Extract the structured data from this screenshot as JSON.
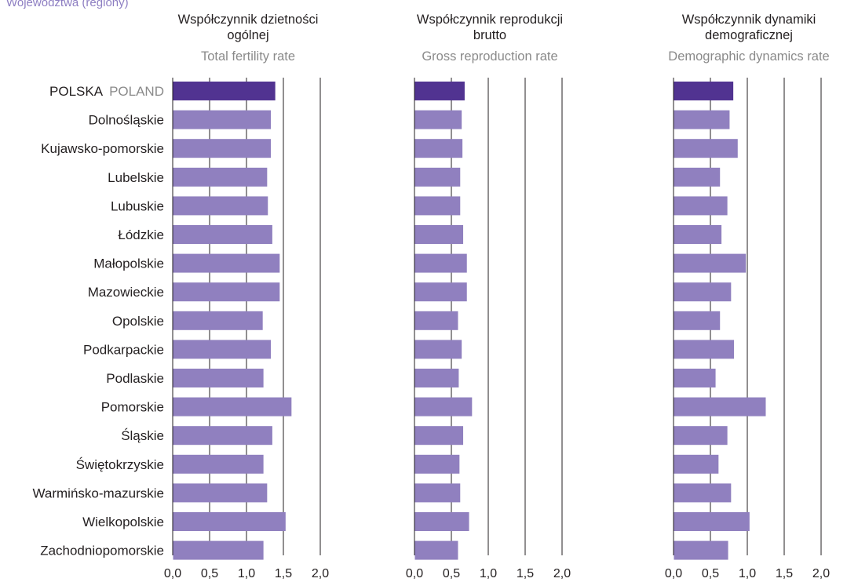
{
  "header": {
    "text": "Województwa (regiony)"
  },
  "colors": {
    "highlight": "#513391",
    "bar": "#9080bf",
    "axis": "#231f20",
    "title_en": "#8a8a8a"
  },
  "categories": [
    {
      "label": "POLSKA",
      "label_en": "POLAND"
    },
    {
      "label": "Dolnośląskie",
      "label_en": ""
    },
    {
      "label": "Kujawsko-pomorskie",
      "label_en": ""
    },
    {
      "label": "Lubelskie",
      "label_en": ""
    },
    {
      "label": "Lubuskie",
      "label_en": ""
    },
    {
      "label": "Łódzkie",
      "label_en": ""
    },
    {
      "label": "Małopolskie",
      "label_en": ""
    },
    {
      "label": "Mazowieckie",
      "label_en": ""
    },
    {
      "label": "Opolskie",
      "label_en": ""
    },
    {
      "label": "Podkarpackie",
      "label_en": ""
    },
    {
      "label": "Podlaskie",
      "label_en": ""
    },
    {
      "label": "Pomorskie",
      "label_en": ""
    },
    {
      "label": "Śląskie",
      "label_en": ""
    },
    {
      "label": "Świętokrzyskie",
      "label_en": ""
    },
    {
      "label": "Warmińsko-mazurskie",
      "label_en": ""
    },
    {
      "label": "Wielkopolskie",
      "label_en": ""
    },
    {
      "label": "Zachodniopomorskie",
      "label_en": ""
    }
  ],
  "chart_data": [
    {
      "type": "bar",
      "orientation": "horizontal",
      "title": "Współczynnik dzietności ogólnej",
      "title_en": "Total fertility rate",
      "categories": [
        "POLSKA POLAND",
        "Dolnośląskie",
        "Kujawsko-pomorskie",
        "Lubelskie",
        "Lubuskie",
        "Łódzkie",
        "Małopolskie",
        "Mazowieckie",
        "Opolskie",
        "Podkarpackie",
        "Podlaskie",
        "Pomorskie",
        "Śląskie",
        "Świętokrzyskie",
        "Warmińsko-mazurskie",
        "Wielkopolskie",
        "Zachodniopomorskie"
      ],
      "values": [
        1.39,
        1.33,
        1.33,
        1.28,
        1.29,
        1.35,
        1.45,
        1.45,
        1.22,
        1.33,
        1.23,
        1.61,
        1.35,
        1.23,
        1.28,
        1.53,
        1.23
      ],
      "xlim": [
        0,
        2
      ],
      "ticks": [
        0,
        0.5,
        1,
        1.5,
        2
      ],
      "tick_labels": [
        "0,0",
        "0,5",
        "1,0",
        "1,5",
        "2,0"
      ],
      "grid": true
    },
    {
      "type": "bar",
      "orientation": "horizontal",
      "title": "Współczynnik reprodukcji brutto",
      "title_en": "Gross reproduction rate",
      "categories": [
        "POLSKA POLAND",
        "Dolnośląskie",
        "Kujawsko-pomorskie",
        "Lubelskie",
        "Lubuskie",
        "Łódzkie",
        "Małopolskie",
        "Mazowieckie",
        "Opolskie",
        "Podkarpackie",
        "Podlaskie",
        "Pomorskie",
        "Śląskie",
        "Świętokrzyskie",
        "Warmińsko-mazurskie",
        "Wielkopolskie",
        "Zachodniopomorskie"
      ],
      "values": [
        0.68,
        0.64,
        0.65,
        0.62,
        0.62,
        0.66,
        0.71,
        0.71,
        0.59,
        0.64,
        0.6,
        0.78,
        0.66,
        0.61,
        0.62,
        0.74,
        0.59
      ],
      "xlim": [
        0,
        2
      ],
      "ticks": [
        0,
        0.5,
        1,
        1.5,
        2
      ],
      "tick_labels": [
        "0,0",
        "0,5",
        "1,0",
        "1,5",
        "2,0"
      ],
      "grid": true
    },
    {
      "type": "bar",
      "orientation": "horizontal",
      "title": "Współczynnik dynamiki demograficznej",
      "title_en": "Demographic dynamics rate",
      "categories": [
        "POLSKA POLAND",
        "Dolnośląskie",
        "Kujawsko-pomorskie",
        "Lubelskie",
        "Lubuskie",
        "Łódzkie",
        "Małopolskie",
        "Mazowieckie",
        "Opolskie",
        "Podkarpackie",
        "Podlaskie",
        "Pomorskie",
        "Śląskie",
        "Świętokrzyskie",
        "Warmińsko-mazurskie",
        "Wielkopolskie",
        "Zachodniopomorskie"
      ],
      "values": [
        0.81,
        0.76,
        0.87,
        0.63,
        0.73,
        0.65,
        0.98,
        0.78,
        0.63,
        0.82,
        0.57,
        1.25,
        0.73,
        0.61,
        0.78,
        1.03,
        0.74
      ],
      "xlim": [
        0,
        2
      ],
      "ticks": [
        0,
        0.5,
        1,
        1.5,
        2
      ],
      "tick_labels": [
        "0,0",
        "0,5",
        "1,0",
        "1,5",
        "2,0"
      ],
      "grid": true
    }
  ]
}
